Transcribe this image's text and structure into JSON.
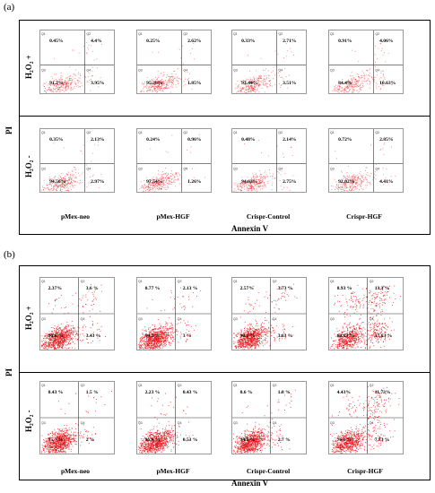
{
  "panel_a": {
    "label": "(a)",
    "y_axis": "PI",
    "x_axis": "Annexin V",
    "rows": [
      {
        "label": "H₂O₂ +"
      },
      {
        "label": "H₂O₂ -"
      }
    ],
    "columns": [
      "pMex-neo",
      "pMex-HGF",
      "Crispr-Control",
      "Crispr-HGF"
    ],
    "plots": [
      [
        {
          "ul": "0.45%",
          "ur": "4.4%",
          "ll": "91.2%",
          "lr": "3.95%"
        },
        {
          "ul": "0.25%",
          "ur": "2.62%",
          "ll": "95.28%",
          "lr": "1.85%"
        },
        {
          "ul": "0.33%",
          "ur": "2.71%",
          "ll": "93.44%",
          "lr": "3.51%"
        },
        {
          "ul": "0.91%",
          "ur": "4.06%",
          "ll": "84.4%",
          "lr": "10.63%"
        }
      ],
      [
        {
          "ul": "0.35%",
          "ur": "2.13%",
          "ll": "94.56%",
          "lr": "2.97%"
        },
        {
          "ul": "0.24%",
          "ur": "0.96%",
          "ll": "97.54%",
          "lr": "1.26%"
        },
        {
          "ul": "0.48%",
          "ur": "2.14%",
          "ll": "94.63%",
          "lr": "2.75%"
        },
        {
          "ul": "0.72%",
          "ur": "2.85%",
          "ll": "92.02%",
          "lr": "4.41%"
        }
      ]
    ]
  },
  "panel_b": {
    "label": "(b)",
    "y_axis": "PI",
    "x_axis": "Annexin V",
    "rows": [
      {
        "label": "H₂O₂ +"
      },
      {
        "label": "H₂O₂ -"
      }
    ],
    "columns": [
      "pMex-neo",
      "pMex-HGF",
      "Crispr-Control",
      "Crispr-HGF"
    ],
    "plots": [
      [
        {
          "ul": "2.37%",
          "ur": "3.6 %",
          "ll": "90.6 %",
          "lr": "3.43 %"
        },
        {
          "ul": "0.77 %",
          "ur": "2.13 %",
          "ll": "94.1 %",
          "lr": "3 %"
        },
        {
          "ul": "2.57%",
          "ur": "3.73 %",
          "ll": "90.1 %",
          "lr": "3.63 %"
        },
        {
          "ul": "8.93 %",
          "ur": "13.3 %",
          "ll": "60.15 %",
          "lr": "17.63 %"
        }
      ],
      [
        {
          "ul": "0.43 %",
          "ur": "1.5 %",
          "ll": "95.7 %",
          "lr": "2 %"
        },
        {
          "ul": "2.23 %",
          "ur": "0.43 %",
          "ll": "96.8 %",
          "lr": "0.53 %"
        },
        {
          "ul": "0.6 %",
          "ur": "1.8 %",
          "ll": "94.9 %",
          "lr": "2.7 %"
        },
        {
          "ul": "4.43%",
          "ur": "11.73%",
          "ll": "76.1 %",
          "lr": "7.73 %"
        }
      ]
    ]
  }
}
